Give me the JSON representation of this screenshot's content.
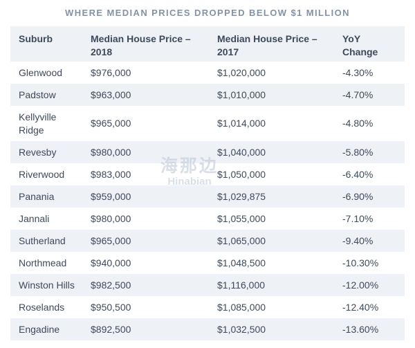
{
  "title": "WHERE MEDIAN PRICES DROPPED BELOW $1 MILLION",
  "watermark": {
    "cn": "海那边",
    "en": "Hinabian"
  },
  "colors": {
    "stripe_bg": "#eef1f5",
    "body_text": "#3e4a5a",
    "title_text": "#8392a4",
    "page_bg": "#ffffff"
  },
  "chart_data": {
    "type": "table",
    "title": "WHERE MEDIAN PRICES DROPPED BELOW $1 MILLION",
    "columns": [
      "Suburb",
      "Median House Price – 2018",
      "Median House Price – 2017",
      "YoY Change"
    ],
    "rows": [
      [
        "Glenwood",
        "$976,000",
        "$1,020,000",
        "-4.30%"
      ],
      [
        "Padstow",
        "$963,000",
        "$1,010,000",
        "-4.70%"
      ],
      [
        "Kellyville Ridge",
        "$965,000",
        "$1,014,000",
        "-4.80%"
      ],
      [
        "Revesby",
        "$980,000",
        "$1,040,000",
        "-5.80%"
      ],
      [
        "Riverwood",
        "$983,000",
        "$1,050,000",
        "-6.40%"
      ],
      [
        "Panania",
        "$959,000",
        "$1,029,875",
        "-6.90%"
      ],
      [
        "Jannali",
        "$980,000",
        "$1,055,000",
        "-7.10%"
      ],
      [
        "Sutherland",
        "$965,000",
        "$1,065,000",
        "-9.40%"
      ],
      [
        "Northmead",
        "$940,000",
        "$1,048,500",
        "-10.30%"
      ],
      [
        "Winston Hills",
        "$982,500",
        "$1,116,000",
        "-12.00%"
      ],
      [
        "Roselands",
        "$950,500",
        "$1,085,000",
        "-12.40%"
      ],
      [
        "Engadine",
        "$892,500",
        "$1,032,500",
        "-13.60%"
      ]
    ],
    "layout": {
      "striped_rows": true,
      "stripe_color": "#eef1f5",
      "header_background": "#eef1f5",
      "borders": "none"
    }
  }
}
